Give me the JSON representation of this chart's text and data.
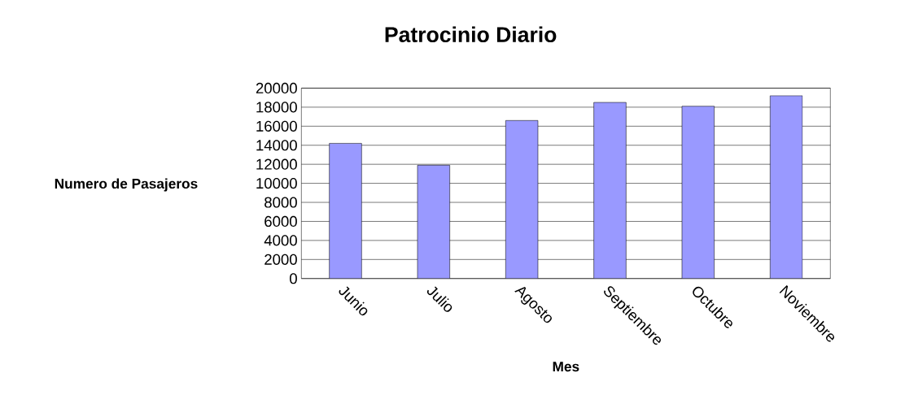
{
  "chart_data": {
    "type": "bar",
    "title": "Patrocinio Diario",
    "xlabel": "Mes",
    "ylabel": "Numero de Pasajeros",
    "categories": [
      "Junio",
      "Julio",
      "Agosto",
      "Septiembre",
      "Octubre",
      "Noviembre"
    ],
    "values": [
      14200,
      11900,
      16600,
      18500,
      18100,
      19200
    ],
    "color": "#9999ff",
    "ylim": [
      0,
      20000
    ],
    "yticks": [
      0,
      2000,
      4000,
      6000,
      8000,
      10000,
      12000,
      14000,
      16000,
      18000,
      20000
    ],
    "grid": "y"
  }
}
